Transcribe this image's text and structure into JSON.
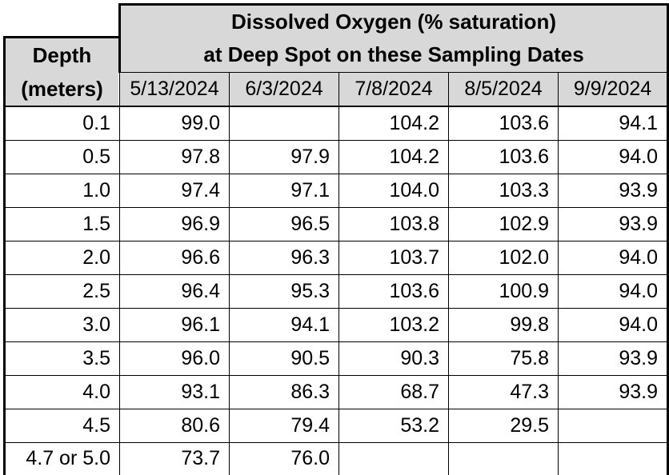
{
  "table": {
    "title_line1": "Dissolved Oxygen (% saturation)",
    "title_line2": "at Deep Spot on these Sampling Dates",
    "depth_header_line1": "Depth",
    "depth_header_line2": "(meters)",
    "date_columns": [
      "5/13/2024",
      "6/3/2024",
      "7/8/2024",
      "8/5/2024",
      "9/9/2024"
    ],
    "rows": [
      {
        "depth": "0.1",
        "values": [
          "99.0",
          "",
          "104.2",
          "103.6",
          "94.1"
        ]
      },
      {
        "depth": "0.5",
        "values": [
          "97.8",
          "97.9",
          "104.2",
          "103.6",
          "94.0"
        ]
      },
      {
        "depth": "1.0",
        "values": [
          "97.4",
          "97.1",
          "104.0",
          "103.3",
          "93.9"
        ]
      },
      {
        "depth": "1.5",
        "values": [
          "96.9",
          "96.5",
          "103.8",
          "102.9",
          "93.9"
        ]
      },
      {
        "depth": "2.0",
        "values": [
          "96.6",
          "96.3",
          "103.7",
          "102.0",
          "94.0"
        ]
      },
      {
        "depth": "2.5",
        "values": [
          "96.4",
          "95.3",
          "103.6",
          "100.9",
          "94.0"
        ]
      },
      {
        "depth": "3.0",
        "values": [
          "96.1",
          "94.1",
          "103.2",
          "99.8",
          "94.0"
        ]
      },
      {
        "depth": "3.5",
        "values": [
          "96.0",
          "90.5",
          "90.3",
          "75.8",
          "93.9"
        ]
      },
      {
        "depth": "4.0",
        "values": [
          "93.1",
          "86.3",
          "68.7",
          "47.3",
          "93.9"
        ]
      },
      {
        "depth": "4.5",
        "values": [
          "80.6",
          "79.4",
          "53.2",
          "29.5",
          ""
        ]
      },
      {
        "depth": "4.7 or 5.0",
        "values": [
          "73.7",
          "76.0",
          "",
          "",
          ""
        ]
      }
    ],
    "colors": {
      "header_bg": "#d8d8d8",
      "body_bg": "#ffffff",
      "border": "#000000",
      "text": "#000000"
    }
  },
  "chart_data": {
    "type": "table",
    "title": "Dissolved Oxygen (% saturation) at Deep Spot on these Sampling Dates",
    "row_header": "Depth (meters)",
    "columns": [
      "5/13/2024",
      "6/3/2024",
      "7/8/2024",
      "8/5/2024",
      "9/9/2024"
    ],
    "depths_m": [
      0.1,
      0.5,
      1.0,
      1.5,
      2.0,
      2.5,
      3.0,
      3.5,
      4.0,
      4.5,
      "4.7 or 5.0"
    ],
    "series": [
      {
        "name": "5/13/2024",
        "values": [
          99.0,
          97.8,
          97.4,
          96.9,
          96.6,
          96.4,
          96.1,
          96.0,
          93.1,
          80.6,
          73.7
        ]
      },
      {
        "name": "6/3/2024",
        "values": [
          null,
          97.9,
          97.1,
          96.5,
          96.3,
          95.3,
          94.1,
          90.5,
          86.3,
          79.4,
          76.0
        ]
      },
      {
        "name": "7/8/2024",
        "values": [
          104.2,
          104.2,
          104.0,
          103.8,
          103.7,
          103.6,
          103.2,
          90.3,
          68.7,
          53.2,
          null
        ]
      },
      {
        "name": "8/5/2024",
        "values": [
          103.6,
          103.6,
          103.3,
          102.9,
          102.0,
          100.9,
          99.8,
          75.8,
          47.3,
          29.5,
          null
        ]
      },
      {
        "name": "9/9/2024",
        "values": [
          94.1,
          94.0,
          93.9,
          93.9,
          94.0,
          94.0,
          94.0,
          93.9,
          93.9,
          null,
          null
        ]
      }
    ]
  }
}
